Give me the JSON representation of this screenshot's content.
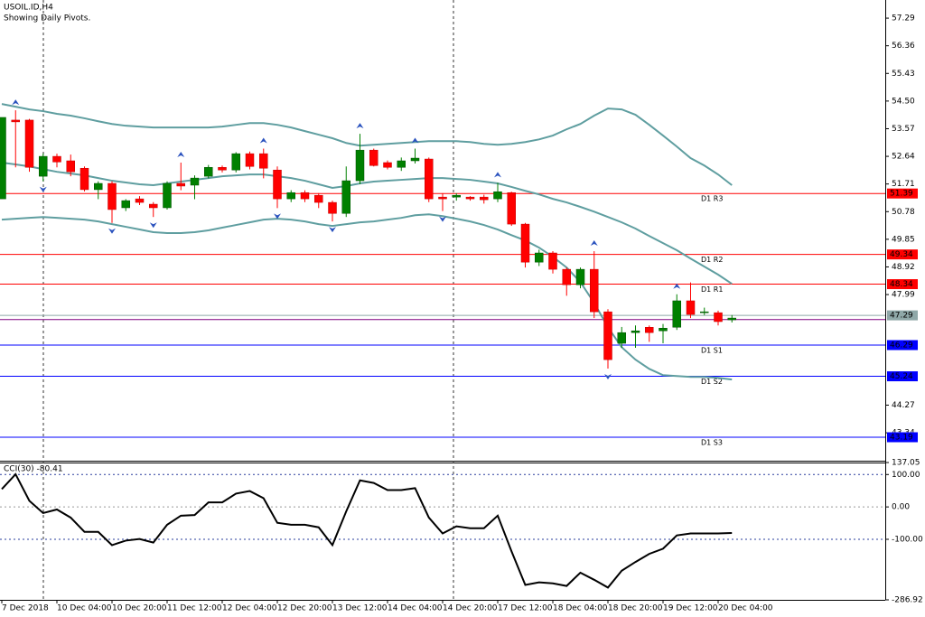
{
  "chart_data": [
    {
      "type": "candlestick",
      "title": "USOIL.ID,H4",
      "subtitle": "Showing Daily Pivots.",
      "categories": [
        "7 Dec 2018",
        null,
        null,
        null,
        "10 Dec 04:00",
        null,
        null,
        null,
        "10 Dec 20:00",
        null,
        null,
        null,
        "11 Dec 12:00",
        null,
        null,
        null,
        "12 Dec 04:00",
        null,
        null,
        null,
        "12 Dec 20:00",
        null,
        null,
        null,
        "13 Dec 12:00",
        null,
        null,
        null,
        "14 Dec 04:00",
        null,
        null,
        null,
        "14 Dec 20:00",
        null,
        null,
        null,
        "17 Dec 12:00",
        null,
        null,
        null,
        "18 Dec 04:00",
        null,
        null,
        null,
        "18 Dec 20:00",
        null,
        null,
        null,
        "19 Dec 12:00",
        null,
        null,
        null,
        "20 Dec 04:00",
        null
      ],
      "open": [
        51.21,
        53.86,
        53.86,
        51.97,
        52.64,
        52.49,
        52.24,
        51.52,
        51.73,
        50.91,
        51.21,
        51.03,
        50.91,
        51.73,
        51.67,
        51.97,
        52.27,
        52.18,
        52.73,
        52.73,
        52.18,
        51.21,
        51.42,
        51.33,
        51.09,
        50.72,
        51.82,
        52.85,
        52.43,
        52.27,
        52.49,
        52.55,
        51.27,
        51.27,
        51.27,
        51.27,
        51.21,
        51.42,
        50.36,
        49.08,
        49.39,
        48.84,
        48.32,
        48.84,
        47.41,
        46.35,
        46.71,
        46.89,
        46.77,
        46.89,
        47.78,
        47.41,
        47.38,
        47.14
      ],
      "high": [
        53.95,
        54.19,
        53.9,
        52.74,
        52.73,
        52.7,
        52.3,
        51.8,
        51.8,
        51.2,
        51.3,
        51.1,
        51.8,
        52.43,
        52.0,
        52.35,
        52.33,
        52.78,
        52.8,
        52.9,
        52.3,
        51.5,
        51.5,
        51.4,
        51.15,
        52.3,
        53.4,
        52.9,
        52.5,
        52.6,
        52.9,
        52.6,
        51.4,
        51.4,
        51.3,
        51.35,
        51.75,
        51.45,
        50.4,
        49.5,
        49.45,
        48.9,
        48.9,
        49.45,
        47.5,
        46.9,
        46.95,
        46.95,
        47.0,
        48.0,
        48.4,
        47.55,
        47.45,
        47.3
      ],
      "low": [
        51.21,
        52.27,
        52.12,
        51.8,
        52.27,
        51.97,
        51.46,
        51.2,
        50.4,
        50.8,
        51.0,
        50.6,
        50.85,
        51.5,
        51.2,
        51.9,
        52.1,
        52.1,
        52.2,
        51.9,
        50.9,
        51.1,
        51.1,
        50.9,
        50.45,
        50.6,
        51.7,
        52.3,
        52.2,
        52.15,
        52.4,
        51.1,
        50.8,
        51.15,
        51.15,
        51.05,
        51.1,
        50.3,
        48.9,
        48.95,
        48.7,
        47.95,
        48.2,
        47.2,
        45.5,
        46.2,
        46.2,
        46.4,
        46.35,
        46.8,
        47.2,
        47.3,
        46.95,
        47.05
      ],
      "close": [
        53.95,
        53.8,
        52.27,
        52.64,
        52.45,
        52.12,
        51.52,
        51.73,
        50.85,
        51.15,
        51.09,
        50.91,
        51.73,
        51.64,
        51.91,
        52.27,
        52.18,
        52.73,
        52.3,
        52.24,
        51.21,
        51.42,
        51.21,
        51.09,
        50.72,
        51.82,
        52.85,
        52.33,
        52.27,
        52.49,
        52.58,
        51.21,
        51.21,
        51.33,
        51.21,
        51.18,
        51.45,
        50.36,
        49.08,
        49.39,
        48.84,
        48.32,
        48.84,
        47.41,
        45.8,
        46.71,
        46.77,
        46.71,
        46.86,
        47.78,
        47.32,
        47.41,
        47.08,
        47.2
      ],
      "up_color": "#008000",
      "down_color": "#ff0000",
      "bands": {
        "color": "#5f9ea0",
        "upper": [
          54.4,
          54.31,
          54.22,
          54.16,
          54.07,
          54.01,
          53.92,
          53.82,
          53.73,
          53.67,
          53.64,
          53.61,
          53.61,
          53.61,
          53.61,
          53.61,
          53.64,
          53.7,
          53.76,
          53.76,
          53.7,
          53.61,
          53.49,
          53.37,
          53.25,
          53.09,
          53.0,
          53.03,
          53.06,
          53.09,
          53.12,
          53.15,
          53.15,
          53.15,
          53.12,
          53.06,
          53.03,
          53.06,
          53.12,
          53.21,
          53.34,
          53.55,
          53.73,
          54.01,
          54.25,
          54.22,
          54.04,
          53.7,
          53.34,
          52.97,
          52.58,
          52.33,
          52.03,
          51.67
        ],
        "middle": [
          52.43,
          52.37,
          52.3,
          52.21,
          52.12,
          52.06,
          52.0,
          51.91,
          51.82,
          51.76,
          51.7,
          51.67,
          51.73,
          51.79,
          51.85,
          51.91,
          51.97,
          52.0,
          52.03,
          52.03,
          51.97,
          51.91,
          51.82,
          51.7,
          51.58,
          51.64,
          51.73,
          51.79,
          51.82,
          51.85,
          51.88,
          51.91,
          51.91,
          51.88,
          51.85,
          51.79,
          51.73,
          51.61,
          51.48,
          51.36,
          51.21,
          51.09,
          50.94,
          50.78,
          50.6,
          50.42,
          50.21,
          49.96,
          49.72,
          49.48,
          49.2,
          48.93,
          48.66,
          48.35
        ],
        "lower": [
          50.51,
          50.54,
          50.57,
          50.6,
          50.57,
          50.54,
          50.51,
          50.45,
          50.36,
          50.27,
          50.18,
          50.09,
          50.06,
          50.06,
          50.09,
          50.15,
          50.24,
          50.33,
          50.42,
          50.51,
          50.54,
          50.51,
          50.45,
          50.36,
          50.3,
          50.36,
          50.42,
          50.45,
          50.51,
          50.57,
          50.66,
          50.69,
          50.63,
          50.54,
          50.45,
          50.33,
          50.18,
          49.99,
          49.81,
          49.57,
          49.26,
          48.9,
          48.41,
          47.71,
          46.89,
          46.22,
          45.8,
          45.49,
          45.28,
          45.25,
          45.22,
          45.22,
          45.19,
          45.13
        ]
      },
      "fractals": {
        "color": "#2a52be",
        "up": [
          null,
          54.19,
          null,
          null,
          null,
          null,
          null,
          null,
          null,
          null,
          null,
          null,
          null,
          52.43,
          null,
          null,
          null,
          null,
          null,
          52.9,
          null,
          null,
          null,
          null,
          null,
          null,
          53.4,
          null,
          null,
          null,
          52.9,
          null,
          null,
          null,
          null,
          null,
          51.75,
          null,
          null,
          null,
          null,
          null,
          null,
          49.45,
          null,
          null,
          null,
          null,
          null,
          48.0,
          null,
          null,
          null,
          null
        ],
        "down": [
          null,
          null,
          null,
          51.8,
          null,
          null,
          null,
          null,
          50.4,
          null,
          null,
          50.6,
          null,
          null,
          null,
          null,
          null,
          null,
          null,
          null,
          50.9,
          null,
          null,
          null,
          50.45,
          null,
          null,
          null,
          null,
          null,
          null,
          null,
          50.8,
          null,
          null,
          null,
          null,
          null,
          null,
          null,
          null,
          null,
          null,
          null,
          45.5,
          null,
          null,
          null,
          null,
          null,
          null,
          null,
          null,
          null
        ]
      },
      "levels": [
        {
          "name": "D1 R3",
          "value": 51.39,
          "color": "#ff0000"
        },
        {
          "name": "D1 R2",
          "value": 49.34,
          "color": "#ff0000"
        },
        {
          "name": "D1 R1",
          "value": 48.34,
          "color": "#ff0000"
        },
        {
          "name": "D1 S1",
          "value": 46.29,
          "color": "#0000ff"
        },
        {
          "name": "D1 S2",
          "value": 45.24,
          "color": "#0000ff"
        },
        {
          "name": "D1 S3",
          "value": 43.19,
          "color": "#0000ff"
        }
      ],
      "price_lines": [
        {
          "value": 47.29,
          "color": "#8fa8a8"
        },
        {
          "value": 47.15,
          "color": "#800080"
        }
      ],
      "ylim": [
        42.4,
        57.9
      ],
      "yticks": [
        57.29,
        56.36,
        55.43,
        {
          "value": 54.5,
          "label": "54.50"
        },
        53.57,
        52.64,
        51.71,
        50.78,
        49.85,
        48.92,
        47.99,
        44.27,
        43.34
      ]
    },
    {
      "type": "line",
      "title": "CCI(30) -80.41",
      "color": "#000000",
      "values": [
        55,
        101,
        19,
        -19,
        -8,
        -33,
        -77,
        -77,
        -118,
        -104,
        -99,
        -110,
        -55,
        -27,
        -25,
        14,
        14,
        41,
        49,
        27,
        -49,
        -55,
        -55,
        -63,
        -118,
        -14,
        82,
        74,
        52,
        52,
        58,
        -33,
        -82,
        -60,
        -66,
        -66,
        -27,
        -137,
        -241,
        -233,
        -236,
        -244,
        -203,
        -225,
        -249,
        -197,
        -170,
        -145,
        -129,
        -88,
        -82,
        -82,
        -82,
        -80.41
      ],
      "ylim": [
        -286.92,
        137.05
      ],
      "yticks": [
        137.05,
        {
          "value": 100,
          "label": "100.00"
        },
        {
          "value": 0,
          "label": "0.00"
        },
        {
          "value": -100,
          "label": "-100.00"
        },
        -286.92
      ]
    }
  ]
}
